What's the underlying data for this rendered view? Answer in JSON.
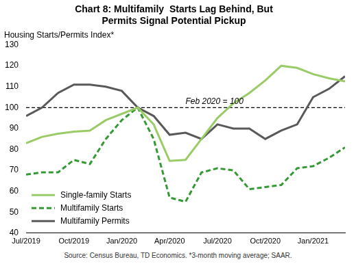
{
  "chart_data": {
    "type": "line",
    "title": [
      "Chart 8: Multifamily  Starts Lag Behind, But",
      "Permits Signal Potential Pickup"
    ],
    "ylabel": "Housing Starts/Permits Index*",
    "source": "Source: Census Bureau, TD Economics. *3-month moving average; SAAR.",
    "categories": [
      "Jul/2019",
      null,
      null,
      "Oct/2019",
      null,
      null,
      "Jan/2020",
      null,
      null,
      "Apr/2020",
      null,
      null,
      "Jul/2020",
      null,
      null,
      "Oct/2020",
      null,
      null,
      "Jan/2021",
      null,
      null
    ],
    "series": [
      {
        "name": "Single-family Starts",
        "color": "#99cc66",
        "line_style": "solid",
        "marker": "none",
        "values": [
          83,
          86,
          87.5,
          88.5,
          89,
          94,
          97,
          100,
          92,
          74.5,
          75,
          85,
          95,
          102,
          107,
          113,
          120,
          119,
          116,
          114,
          112.5
        ]
      },
      {
        "name": "Multifamily Starts",
        "color": "#339933",
        "line_style": "dashed",
        "marker": "none",
        "values": [
          68,
          69,
          69,
          75,
          73,
          85,
          94,
          100,
          85,
          57,
          55,
          69,
          71,
          70,
          61,
          62,
          63,
          71,
          72,
          76,
          81
        ]
      },
      {
        "name": "Multifamily Permits",
        "color": "#595959",
        "line_style": "solid",
        "marker": "none",
        "values": [
          96,
          100,
          107,
          111,
          111,
          110,
          108,
          100,
          96,
          87,
          88,
          85,
          92,
          90,
          90,
          85,
          89,
          92,
          105,
          109,
          115
        ]
      }
    ],
    "annotations": [
      {
        "text": "Feb 2020 = 100",
        "y": 100
      }
    ],
    "ylim": [
      40,
      130
    ],
    "yticks": [
      40,
      50,
      60,
      70,
      80,
      90,
      100,
      110,
      120,
      130
    ],
    "grid": false,
    "legend": "lower left"
  }
}
